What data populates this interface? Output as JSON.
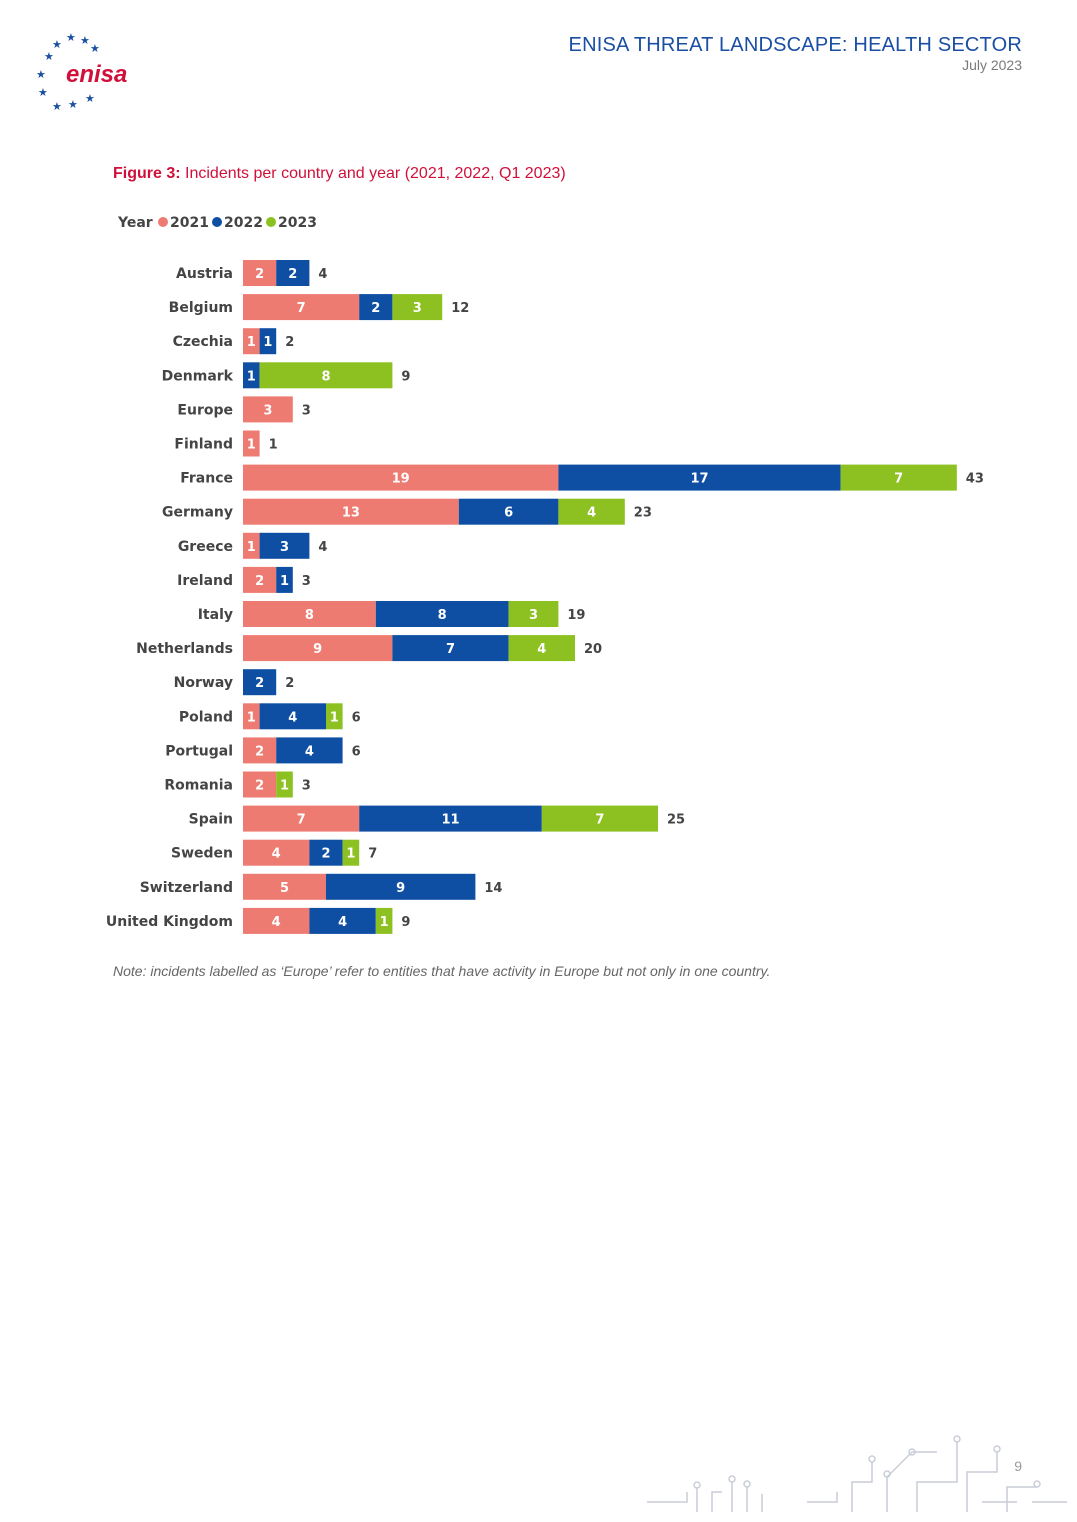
{
  "header": {
    "logo_text": "enisa",
    "title": "ENISA THREAT LANDSCAPE: HEALTH SECTOR",
    "date": "July 2023"
  },
  "figure": {
    "label": "Figure 3:",
    "caption": "Incidents per country and year (2021, 2022, Q1 2023)"
  },
  "chart_data": {
    "type": "bar",
    "orientation": "horizontal",
    "stacked": true,
    "legend_title": "Year",
    "legend_position": "top-left",
    "categories": [
      "Austria",
      "Belgium",
      "Czechia",
      "Denmark",
      "Europe",
      "Finland",
      "France",
      "Germany",
      "Greece",
      "Ireland",
      "Italy",
      "Netherlands",
      "Norway",
      "Poland",
      "Portugal",
      "Romania",
      "Spain",
      "Sweden",
      "Switzerland",
      "United Kingdom"
    ],
    "series": [
      {
        "name": "2021",
        "color": "#ee7b72",
        "values": [
          2,
          7,
          1,
          0,
          3,
          1,
          19,
          13,
          1,
          2,
          8,
          9,
          0,
          1,
          2,
          2,
          7,
          4,
          5,
          4
        ]
      },
      {
        "name": "2022",
        "color": "#0f4fa3",
        "values": [
          2,
          2,
          1,
          1,
          0,
          0,
          17,
          6,
          3,
          1,
          8,
          7,
          2,
          4,
          4,
          0,
          11,
          2,
          9,
          4
        ]
      },
      {
        "name": "2023",
        "color": "#8cc121",
        "values": [
          0,
          3,
          0,
          8,
          0,
          0,
          7,
          4,
          0,
          0,
          3,
          4,
          0,
          1,
          0,
          1,
          7,
          1,
          0,
          1
        ]
      }
    ],
    "totals": [
      4,
      12,
      2,
      9,
      3,
      1,
      43,
      23,
      4,
      3,
      19,
      20,
      2,
      6,
      6,
      3,
      25,
      7,
      14,
      9
    ],
    "grid": false
  },
  "note": "Note: incidents labelled as ‘Europe’ refer to entities that have activity in Europe but not only in one country.",
  "page_number": "9"
}
